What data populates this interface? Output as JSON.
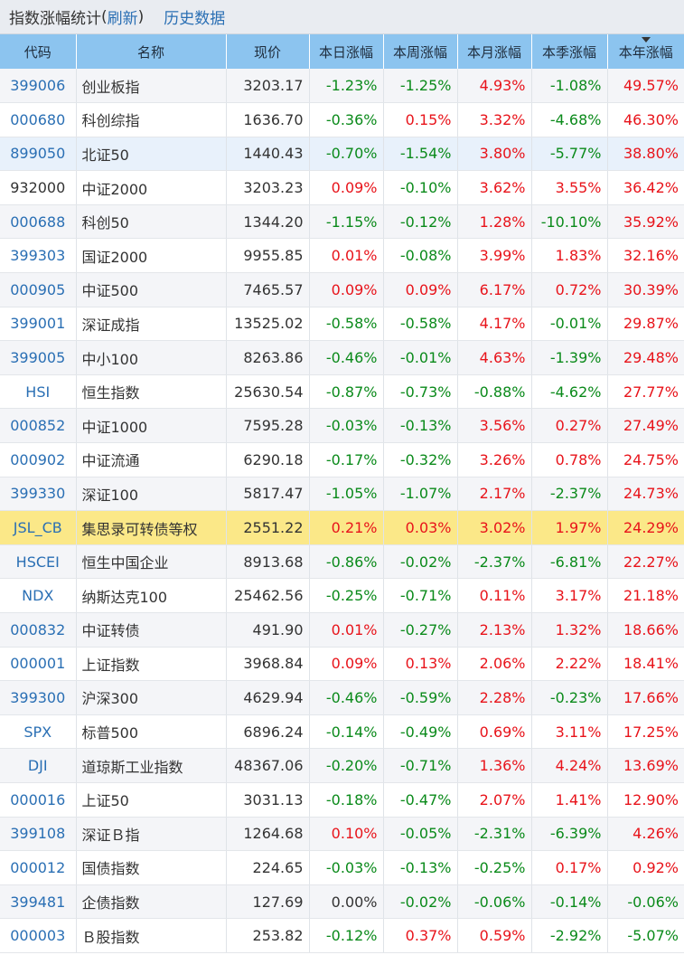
{
  "header": {
    "title": "指数涨幅统计",
    "paren_open": "(",
    "refresh_label": "刷新",
    "paren_close": ")",
    "history_label": "历史数据"
  },
  "colors": {
    "up": "#e8131a",
    "down": "#0a8a1a",
    "link": "#2a6fb4",
    "header_bg": "#8cc4ef",
    "highlight": "#fbe888"
  },
  "columns": [
    "代码",
    "名称",
    "现价",
    "本日涨幅",
    "本周涨幅",
    "本月涨幅",
    "本季涨幅",
    "本年涨幅"
  ],
  "sorted_column_index": 7,
  "rows": [
    {
      "code": "399006",
      "name": "创业板指",
      "price": "3203.17",
      "day": "-1.23%",
      "week": "-1.25%",
      "month": "4.93%",
      "quarter": "-1.08%",
      "year": "49.57%"
    },
    {
      "code": "000680",
      "name": "科创综指",
      "price": "1636.70",
      "day": "-0.36%",
      "week": "0.15%",
      "month": "3.32%",
      "quarter": "-4.68%",
      "year": "46.30%"
    },
    {
      "code": "899050",
      "name": "北证50",
      "price": "1440.43",
      "day": "-0.70%",
      "week": "-1.54%",
      "month": "3.80%",
      "quarter": "-5.77%",
      "year": "38.80%",
      "state": "hover"
    },
    {
      "code": "932000",
      "name": "中证2000",
      "price": "3203.23",
      "day": "0.09%",
      "week": "-0.10%",
      "month": "3.62%",
      "quarter": "3.55%",
      "year": "36.42%",
      "plain_code": true
    },
    {
      "code": "000688",
      "name": "科创50",
      "price": "1344.20",
      "day": "-1.15%",
      "week": "-0.12%",
      "month": "1.28%",
      "quarter": "-10.10%",
      "year": "35.92%"
    },
    {
      "code": "399303",
      "name": "国证2000",
      "price": "9955.85",
      "day": "0.01%",
      "week": "-0.08%",
      "month": "3.99%",
      "quarter": "1.83%",
      "year": "32.16%"
    },
    {
      "code": "000905",
      "name": "中证500",
      "price": "7465.57",
      "day": "0.09%",
      "week": "0.09%",
      "month": "6.17%",
      "quarter": "0.72%",
      "year": "30.39%"
    },
    {
      "code": "399001",
      "name": "深证成指",
      "price": "13525.02",
      "day": "-0.58%",
      "week": "-0.58%",
      "month": "4.17%",
      "quarter": "-0.01%",
      "year": "29.87%"
    },
    {
      "code": "399005",
      "name": "中小100",
      "price": "8263.86",
      "day": "-0.46%",
      "week": "-0.01%",
      "month": "4.63%",
      "quarter": "-1.39%",
      "year": "29.48%"
    },
    {
      "code": "HSI",
      "name": "恒生指数",
      "price": "25630.54",
      "day": "-0.87%",
      "week": "-0.73%",
      "month": "-0.88%",
      "quarter": "-4.62%",
      "year": "27.77%"
    },
    {
      "code": "000852",
      "name": "中证1000",
      "price": "7595.28",
      "day": "-0.03%",
      "week": "-0.13%",
      "month": "3.56%",
      "quarter": "0.27%",
      "year": "27.49%"
    },
    {
      "code": "000902",
      "name": "中证流通",
      "price": "6290.18",
      "day": "-0.17%",
      "week": "-0.32%",
      "month": "3.26%",
      "quarter": "0.78%",
      "year": "24.75%"
    },
    {
      "code": "399330",
      "name": "深证100",
      "price": "5817.47",
      "day": "-1.05%",
      "week": "-1.07%",
      "month": "2.17%",
      "quarter": "-2.37%",
      "year": "24.73%"
    },
    {
      "code": "JSL_CB",
      "name": "集思录可转债等权",
      "price": "2551.22",
      "day": "0.21%",
      "week": "0.03%",
      "month": "3.02%",
      "quarter": "1.97%",
      "year": "24.29%",
      "state": "highlight"
    },
    {
      "code": "HSCEI",
      "name": "恒生中国企业",
      "price": "8913.68",
      "day": "-0.86%",
      "week": "-0.02%",
      "month": "-2.37%",
      "quarter": "-6.81%",
      "year": "22.27%"
    },
    {
      "code": "NDX",
      "name": "纳斯达克100",
      "price": "25462.56",
      "day": "-0.25%",
      "week": "-0.71%",
      "month": "0.11%",
      "quarter": "3.17%",
      "year": "21.18%"
    },
    {
      "code": "000832",
      "name": "中证转债",
      "price": "491.90",
      "day": "0.01%",
      "week": "-0.27%",
      "month": "2.13%",
      "quarter": "1.32%",
      "year": "18.66%"
    },
    {
      "code": "000001",
      "name": "上证指数",
      "price": "3968.84",
      "day": "0.09%",
      "week": "0.13%",
      "month": "2.06%",
      "quarter": "2.22%",
      "year": "18.41%"
    },
    {
      "code": "399300",
      "name": "沪深300",
      "price": "4629.94",
      "day": "-0.46%",
      "week": "-0.59%",
      "month": "2.28%",
      "quarter": "-0.23%",
      "year": "17.66%"
    },
    {
      "code": "SPX",
      "name": "标普500",
      "price": "6896.24",
      "day": "-0.14%",
      "week": "-0.49%",
      "month": "0.69%",
      "quarter": "3.11%",
      "year": "17.25%"
    },
    {
      "code": "DJI",
      "name": "道琼斯工业指数",
      "price": "48367.06",
      "day": "-0.20%",
      "week": "-0.71%",
      "month": "1.36%",
      "quarter": "4.24%",
      "year": "13.69%"
    },
    {
      "code": "000016",
      "name": "上证50",
      "price": "3031.13",
      "day": "-0.18%",
      "week": "-0.47%",
      "month": "2.07%",
      "quarter": "1.41%",
      "year": "12.90%"
    },
    {
      "code": "399108",
      "name": "深证Ｂ指",
      "price": "1264.68",
      "day": "0.10%",
      "week": "-0.05%",
      "month": "-2.31%",
      "quarter": "-6.39%",
      "year": "4.26%"
    },
    {
      "code": "000012",
      "name": "国债指数",
      "price": "224.65",
      "day": "-0.03%",
      "week": "-0.13%",
      "month": "-0.25%",
      "quarter": "0.17%",
      "year": "0.92%"
    },
    {
      "code": "399481",
      "name": "企债指数",
      "price": "127.69",
      "day": "0.00%",
      "week": "-0.02%",
      "month": "-0.06%",
      "quarter": "-0.14%",
      "year": "-0.06%"
    },
    {
      "code": "000003",
      "name": "Ｂ股指数",
      "price": "253.82",
      "day": "-0.12%",
      "week": "0.37%",
      "month": "0.59%",
      "quarter": "-2.92%",
      "year": "-5.07%"
    }
  ]
}
